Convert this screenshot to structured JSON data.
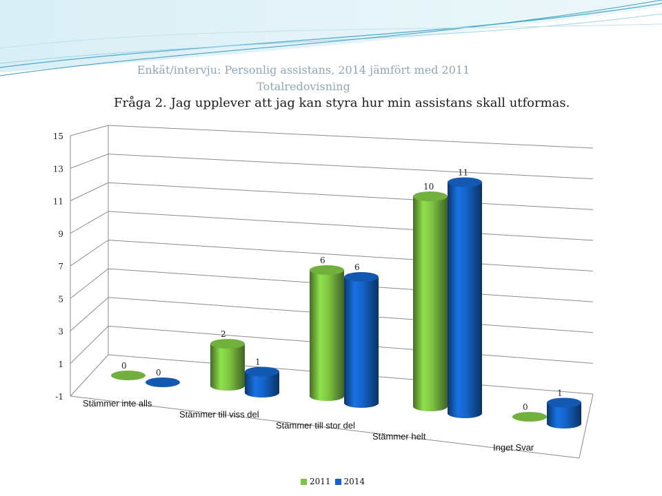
{
  "header": {
    "line1": "Enkät/intervju: Personlig assistans, 2014 jämfört med 2011",
    "line2": "Totalredovisning",
    "line3": "Fråga 2. Jag upplever att jag kan styra hur min assistans skall utformas."
  },
  "colors": {
    "s2011": "#7dc443",
    "s2014": "#1563c6"
  },
  "chart_data": {
    "type": "bar",
    "categories": [
      "Stämmer inte alls",
      "Stämmer till viss del",
      "Stämmer till stor del",
      "Stämmer helt",
      "Inget Svar"
    ],
    "series": [
      {
        "name": "2011",
        "values": [
          0,
          2,
          6,
          10,
          0
        ]
      },
      {
        "name": "2014",
        "values": [
          0,
          1,
          6,
          11,
          1
        ]
      }
    ],
    "y_ticks": [
      "-1",
      "1",
      "3",
      "5",
      "7",
      "9",
      "11",
      "13",
      "15"
    ],
    "ylim": [
      -1,
      15
    ],
    "grid": true,
    "legend_position": "bottom"
  }
}
